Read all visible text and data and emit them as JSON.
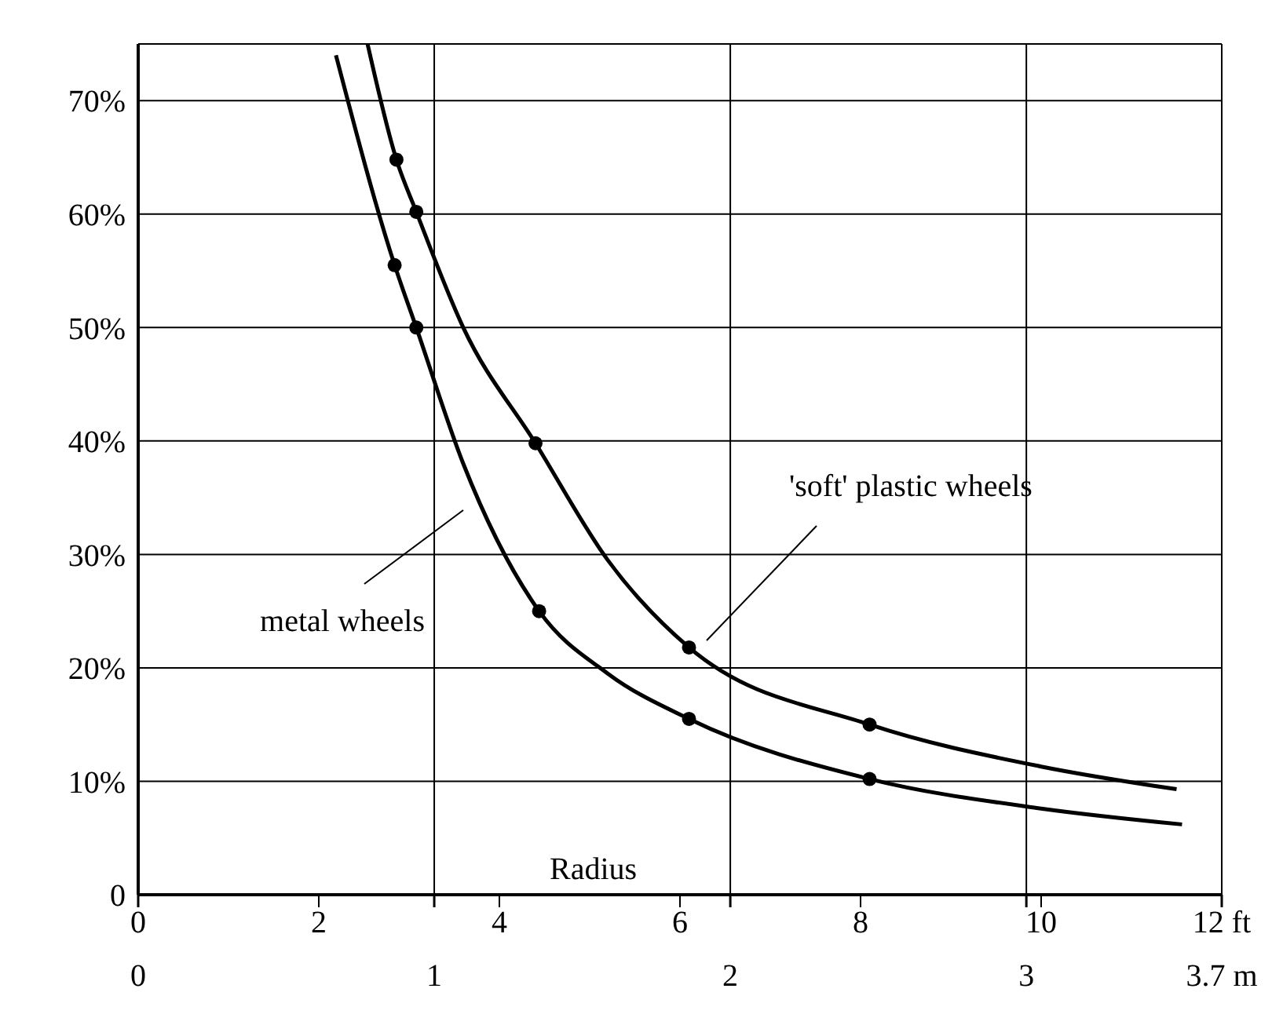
{
  "chart_data": {
    "type": "line",
    "xlabel": "Radius",
    "xlim": [
      0,
      12
    ],
    "xticks": [
      0,
      2,
      4,
      6,
      8,
      10,
      {
        "value": 12,
        "label": "12 ft"
      }
    ],
    "x2lim": [
      0,
      3.66
    ],
    "x2ticks": [
      0,
      1,
      2,
      3,
      {
        "value": 3.66,
        "label": "3.7 m"
      }
    ],
    "ylim": [
      0,
      75
    ],
    "yticks": [
      {
        "value": 0,
        "label": "0"
      },
      {
        "value": 10,
        "label": "10%"
      },
      {
        "value": 20,
        "label": "20%"
      },
      {
        "value": 30,
        "label": "30%"
      },
      {
        "value": 40,
        "label": "40%"
      },
      {
        "value": 50,
        "label": "50%"
      },
      {
        "value": 60,
        "label": "60%"
      },
      {
        "value": 70,
        "label": "70%"
      }
    ],
    "grid": true,
    "legend": false,
    "line_style": "solid",
    "series": [
      {
        "color": "#000000",
        "marker": "none",
        "x": [
          2.19,
          2.84,
          3.08,
          3.6,
          4.44,
          5.2,
          6.1,
          8.1,
          10,
          11.56
        ],
        "values": [
          74,
          55.5,
          50,
          38,
          25,
          19.5,
          15.5,
          10.2,
          7.6,
          6.2
        ]
      },
      {
        "color": "#000000",
        "marker": "none",
        "x": [
          2.54,
          2.86,
          3.08,
          3.6,
          4.4,
          5.2,
          6.1,
          8.1,
          10,
          11.5
        ],
        "values": [
          75,
          64.8,
          60.2,
          50,
          39.8,
          29.5,
          21.8,
          15,
          11.3,
          9.3
        ]
      },
      {
        "type": "scatter",
        "color": "#000000",
        "marker": "circle",
        "x": [
          2.84,
          3.08,
          4.44,
          6.1,
          8.1
        ],
        "values": [
          55.5,
          50,
          25,
          15.5,
          10.2
        ]
      },
      {
        "type": "scatter",
        "color": "#000000",
        "marker": "circle",
        "x": [
          2.86,
          3.08,
          4.4,
          6.1,
          8.1
        ],
        "values": [
          64.8,
          60.2,
          39.8,
          21.8,
          15
        ]
      }
    ],
    "annotations": [
      "metal wheels",
      "'soft' plastic wheels"
    ]
  }
}
